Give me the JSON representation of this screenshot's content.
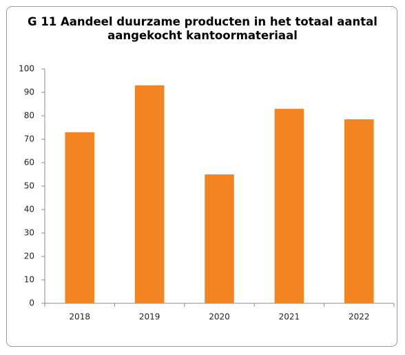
{
  "chart_data": {
    "type": "bar",
    "title": "G 11 Aandeel duurzame producten in het totaal aantal aangekocht kantoormateriaal",
    "categories": [
      "2018",
      "2019",
      "2020",
      "2021",
      "2022"
    ],
    "values": [
      73,
      93,
      55,
      83,
      78.5
    ],
    "color": "#f28522",
    "ylim": [
      0,
      100
    ],
    "yticks": [
      0,
      10,
      20,
      30,
      40,
      50,
      60,
      70,
      80,
      90,
      100
    ],
    "grid": false
  }
}
